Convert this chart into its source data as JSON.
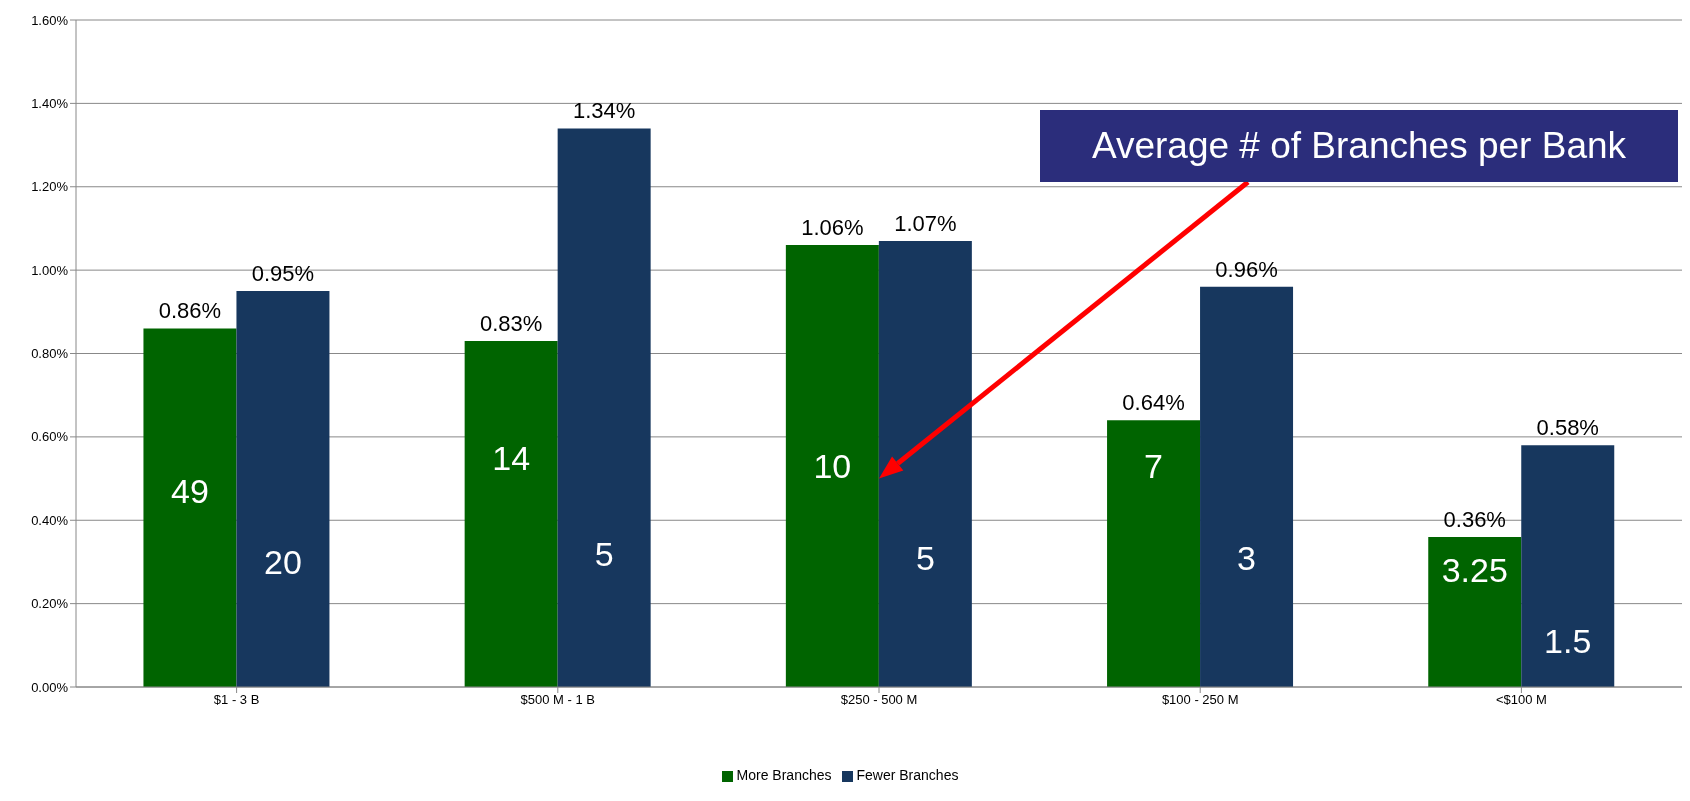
{
  "chart_data": {
    "type": "bar",
    "categories": [
      "$1 - 3 B",
      "$500 M - 1 B",
      "$250 - 500 M",
      "$100 - 250 M",
      "<$100 M"
    ],
    "series": [
      {
        "name": "More Branches",
        "color": "#006400",
        "values": [
          0.86,
          0.83,
          1.06,
          0.64,
          0.36
        ],
        "value_labels": [
          "0.86%",
          "0.83%",
          "1.06%",
          "0.64%",
          "0.36%"
        ]
      },
      {
        "name": "Fewer Branches",
        "color": "#17375e",
        "values": [
          0.95,
          1.34,
          1.07,
          0.96,
          0.58
        ],
        "value_labels": [
          "0.95%",
          "1.34%",
          "1.07%",
          "0.96%",
          "0.58%"
        ]
      }
    ],
    "ylim": [
      0,
      1.6
    ],
    "yticks": [
      {
        "value": 0,
        "label": "0.00%"
      },
      {
        "value": 0.2,
        "label": "0.20%"
      },
      {
        "value": 0.4,
        "label": "0.40%"
      },
      {
        "value": 0.6,
        "label": "0.60%"
      },
      {
        "value": 0.8,
        "label": "0.80%"
      },
      {
        "value": 1.0,
        "label": "1.00%"
      },
      {
        "value": 1.2,
        "label": "1.20%"
      },
      {
        "value": 1.4,
        "label": "1.40%"
      },
      {
        "value": 1.6,
        "label": "1.60%"
      }
    ],
    "grid": "y",
    "legend": "bottom",
    "annotations": [
      {
        "text": "49",
        "x": "$1 - 3 B",
        "y": 0.47
      },
      {
        "text": "20",
        "x": "$1 - 3 B",
        "y": 0.3
      },
      {
        "text": "14",
        "x": "$500 M - 1 B",
        "y": 0.55
      },
      {
        "text": "5",
        "x": "$500 M - 1 B",
        "y": 0.32
      },
      {
        "text": "10",
        "x": "$250 - 500 M",
        "y": 0.53
      },
      {
        "text": "5",
        "x": "$250 - 500 M",
        "y": 0.31
      },
      {
        "text": "7",
        "x": "$100 - 250 M",
        "y": 0.53
      },
      {
        "text": "3",
        "x": "$100 - 250 M",
        "y": 0.31
      },
      {
        "text": "3.25",
        "x": "<$100 M",
        "y": 0.28
      },
      {
        "text": "1.5",
        "x": "<$100 M",
        "y": 0.11
      },
      "Average # of Branches per Bank"
    ]
  }
}
